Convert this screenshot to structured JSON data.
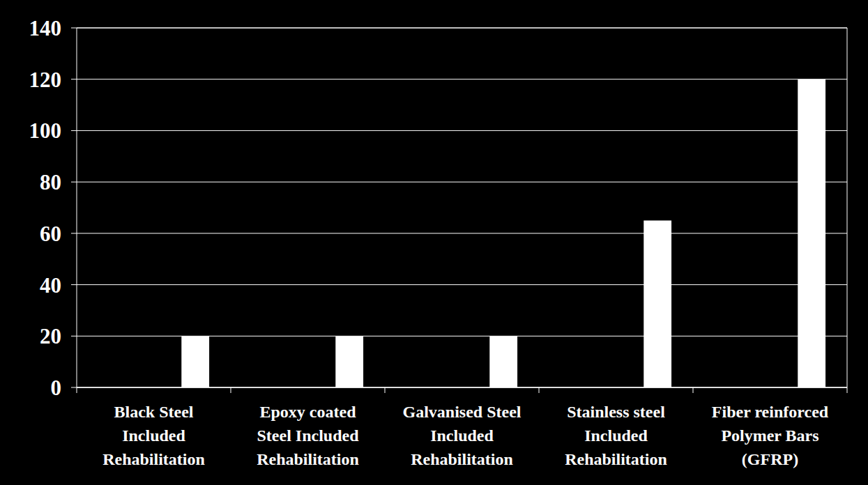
{
  "chart_data": {
    "type": "bar",
    "categories": [
      "Black Steel Included Rehabilitation",
      "Epoxy coated Steel Included Rehabilitation",
      "Galvanised Steel Included Rehabilitation",
      "Stainless steel Included Rehabilitation",
      "Fiber reinforced Polymer Bars (GFRP)"
    ],
    "values": [
      20,
      20,
      20,
      65,
      120
    ],
    "color": "#ffffff",
    "ylim": [
      0,
      140
    ],
    "yticks": [
      0,
      20,
      40,
      60,
      80,
      100,
      120,
      140
    ],
    "grid": true
  }
}
